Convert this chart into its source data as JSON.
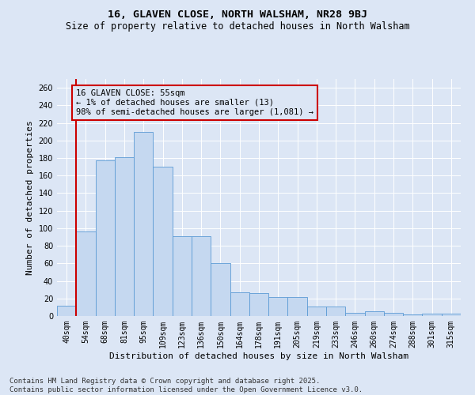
{
  "title1": "16, GLAVEN CLOSE, NORTH WALSHAM, NR28 9BJ",
  "title2": "Size of property relative to detached houses in North Walsham",
  "xlabel": "Distribution of detached houses by size in North Walsham",
  "ylabel": "Number of detached properties",
  "footer1": "Contains HM Land Registry data © Crown copyright and database right 2025.",
  "footer2": "Contains public sector information licensed under the Open Government Licence v3.0.",
  "annotation_title": "16 GLAVEN CLOSE: 55sqm",
  "annotation_line1": "← 1% of detached houses are smaller (13)",
  "annotation_line2": "98% of semi-detached houses are larger (1,081) →",
  "bar_color": "#c5d8f0",
  "bar_edge_color": "#5b9bd5",
  "vline_color": "#cc0000",
  "annotation_box_color": "#cc0000",
  "background_color": "#dce6f5",
  "categories": [
    "40sqm",
    "54sqm",
    "68sqm",
    "81sqm",
    "95sqm",
    "109sqm",
    "123sqm",
    "136sqm",
    "150sqm",
    "164sqm",
    "178sqm",
    "191sqm",
    "205sqm",
    "219sqm",
    "233sqm",
    "246sqm",
    "260sqm",
    "274sqm",
    "288sqm",
    "301sqm",
    "315sqm"
  ],
  "values": [
    12,
    96,
    177,
    181,
    210,
    170,
    91,
    91,
    60,
    27,
    26,
    22,
    22,
    11,
    11,
    4,
    5,
    4,
    2,
    3,
    3
  ],
  "ylim": [
    0,
    270
  ],
  "yticks": [
    0,
    20,
    40,
    60,
    80,
    100,
    120,
    140,
    160,
    180,
    200,
    220,
    240,
    260
  ],
  "vline_x_index": 0.5,
  "grid_color": "#ffffff",
  "title1_fontsize": 9.5,
  "title2_fontsize": 8.5,
  "axis_label_fontsize": 8,
  "tick_fontsize": 7,
  "annotation_fontsize": 7.5,
  "footer_fontsize": 6.5
}
